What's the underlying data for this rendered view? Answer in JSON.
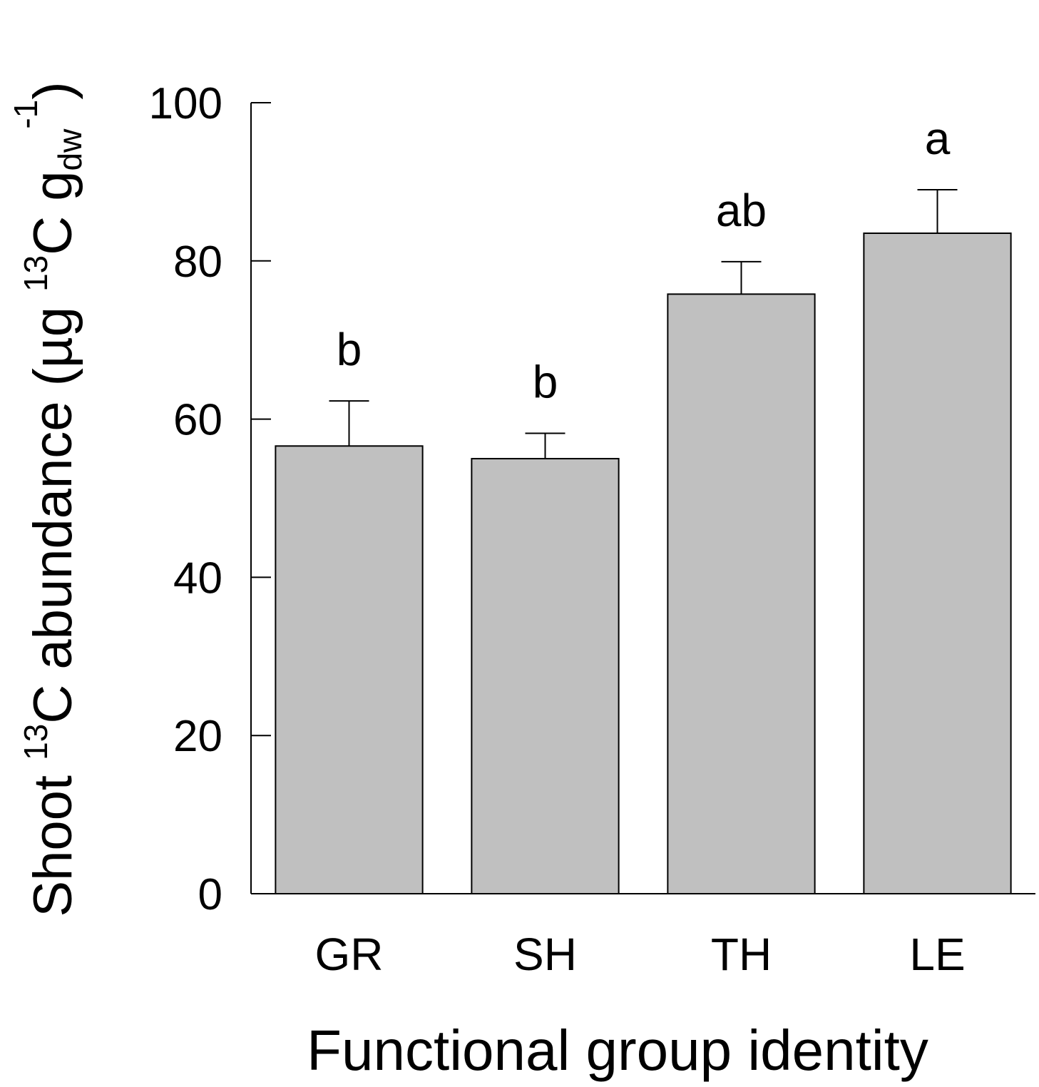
{
  "chart_data": {
    "type": "bar",
    "ylabel_parts": [
      "Shoot ",
      "13",
      "C abundance (µg ",
      "13",
      "C g",
      "dw",
      "-1",
      ")"
    ],
    "xlabel": "Functional group identity",
    "categories": [
      "GR",
      "SH",
      "TH",
      "LE"
    ],
    "values": [
      56.6,
      55.0,
      75.8,
      83.5
    ],
    "errors": [
      5.7,
      3.2,
      4.1,
      5.5
    ],
    "annotations": [
      "b",
      "b",
      "ab",
      "a"
    ],
    "color": "#c0c0c0",
    "ylim": [
      0,
      100
    ],
    "yticks": [
      0,
      20,
      40,
      60,
      80,
      100
    ]
  }
}
